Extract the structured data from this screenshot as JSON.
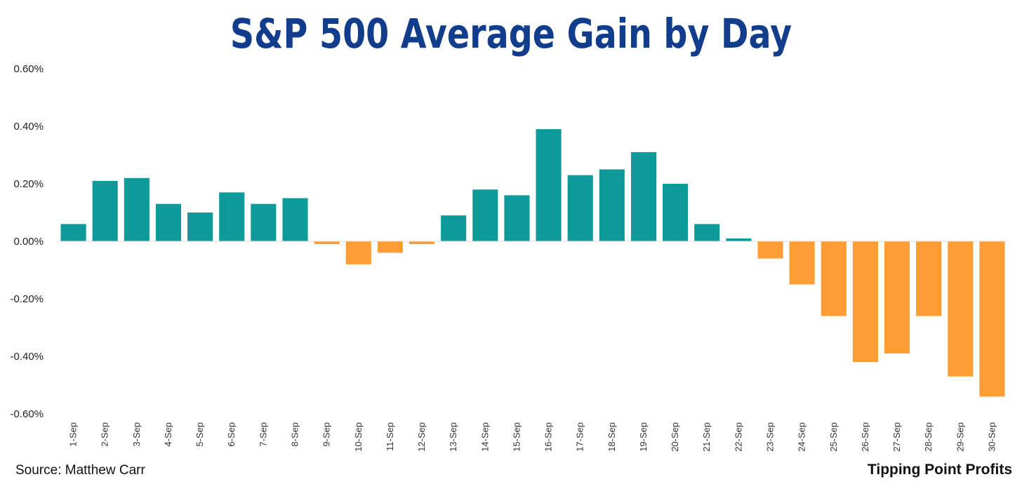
{
  "title": "S&P 500 Average Gain by Day",
  "source": "Source: Matthew Carr",
  "brand": "Tipping Point Profits",
  "colors": {
    "positive": "#0e9a9a",
    "negative": "#ff9d35",
    "title": "#123c8c"
  },
  "chart_data": {
    "type": "bar",
    "title": "S&P 500 Average Gain by Day",
    "xlabel": "",
    "ylabel": "",
    "ylim": [
      -0.6,
      0.6
    ],
    "yticks": [
      0.6,
      0.4,
      0.2,
      0.0,
      -0.2,
      -0.4,
      -0.6
    ],
    "ytick_labels": [
      "0.60%",
      "0.40%",
      "0.20%",
      "0.00%",
      "-0.20%",
      "-0.40%",
      "-0.60%"
    ],
    "grid": false,
    "categories": [
      "1-Sep",
      "2-Sep",
      "3-Sep",
      "4-Sep",
      "5-Sep",
      "6-Sep",
      "7-Sep",
      "8-Sep",
      "9-Sep",
      "10-Sep",
      "11-Sep",
      "12-Sep",
      "13-Sep",
      "14-Sep",
      "15-Sep",
      "16-Sep",
      "17-Sep",
      "18-Sep",
      "19-Sep",
      "20-Sep",
      "21-Sep",
      "22-Sep",
      "23-Sep",
      "24-Sep",
      "25-Sep",
      "26-Sep",
      "27-Sep",
      "28-Sep",
      "29-Sep",
      "30-Sep"
    ],
    "values": [
      0.06,
      0.21,
      0.22,
      0.13,
      0.1,
      0.17,
      0.13,
      0.15,
      -0.01,
      -0.08,
      -0.04,
      -0.01,
      0.09,
      0.18,
      0.16,
      0.39,
      0.23,
      0.25,
      0.31,
      0.2,
      0.06,
      0.01,
      -0.06,
      -0.15,
      -0.26,
      -0.42,
      -0.39,
      -0.26,
      -0.47,
      -0.54
    ]
  }
}
